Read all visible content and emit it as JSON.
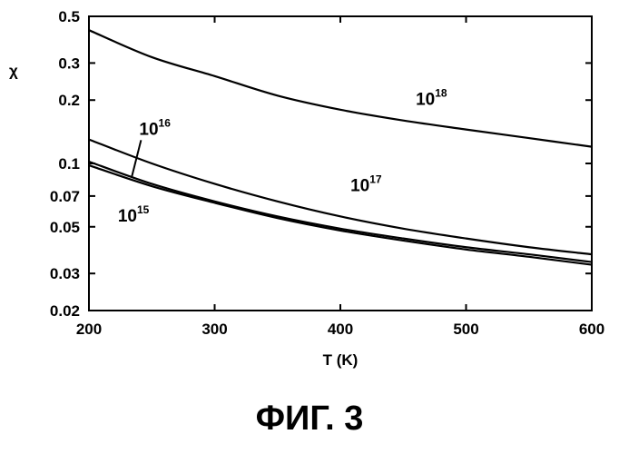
{
  "figure_caption": "ФИГ. 3",
  "chart_data": {
    "type": "line",
    "title": "",
    "xlabel": "T (K)",
    "ylabel": "χ",
    "xlim": [
      200,
      600
    ],
    "ylim": [
      0.02,
      0.5
    ],
    "yscale": "log",
    "grid": false,
    "legend": "none",
    "x_ticks": [
      200,
      300,
      400,
      500,
      600
    ],
    "x_tick_labels": [
      "200",
      "300",
      "400",
      "500",
      "600"
    ],
    "y_ticks": [
      0.02,
      0.03,
      0.05,
      0.07,
      0.1,
      0.2,
      0.3,
      0.5
    ],
    "y_tick_labels": [
      "0.02",
      "0.03",
      "0.05",
      "0.07",
      "0.1",
      "0.2",
      "0.3",
      "0.5"
    ],
    "x": [
      200,
      250,
      300,
      350,
      400,
      450,
      500,
      550,
      600
    ],
    "series": [
      {
        "name": "10^18",
        "label_base": "10",
        "label_exp": "18",
        "values": [
          0.43,
          0.32,
          0.26,
          0.21,
          0.18,
          0.16,
          0.145,
          0.132,
          0.12
        ],
        "label_at": [
          460,
          0.19
        ]
      },
      {
        "name": "10^17",
        "label_base": "10",
        "label_exp": "17",
        "values": [
          0.13,
          0.1,
          0.08,
          0.066,
          0.056,
          0.049,
          0.044,
          0.04,
          0.037
        ],
        "label_at": [
          408,
          0.074
        ]
      },
      {
        "name": "10^16",
        "label_base": "10",
        "label_exp": "16",
        "values": [
          0.102,
          0.08,
          0.066,
          0.056,
          0.049,
          0.044,
          0.04,
          0.037,
          0.034
        ],
        "label_at": [
          240,
          0.137
        ],
        "pointer_to": [
          234,
          0.086
        ]
      },
      {
        "name": "10^15",
        "label_base": "10",
        "label_exp": "15",
        "values": [
          0.098,
          0.078,
          0.065,
          0.055,
          0.048,
          0.043,
          0.039,
          0.036,
          0.033
        ],
        "label_at": [
          223,
          0.053
        ]
      }
    ]
  }
}
